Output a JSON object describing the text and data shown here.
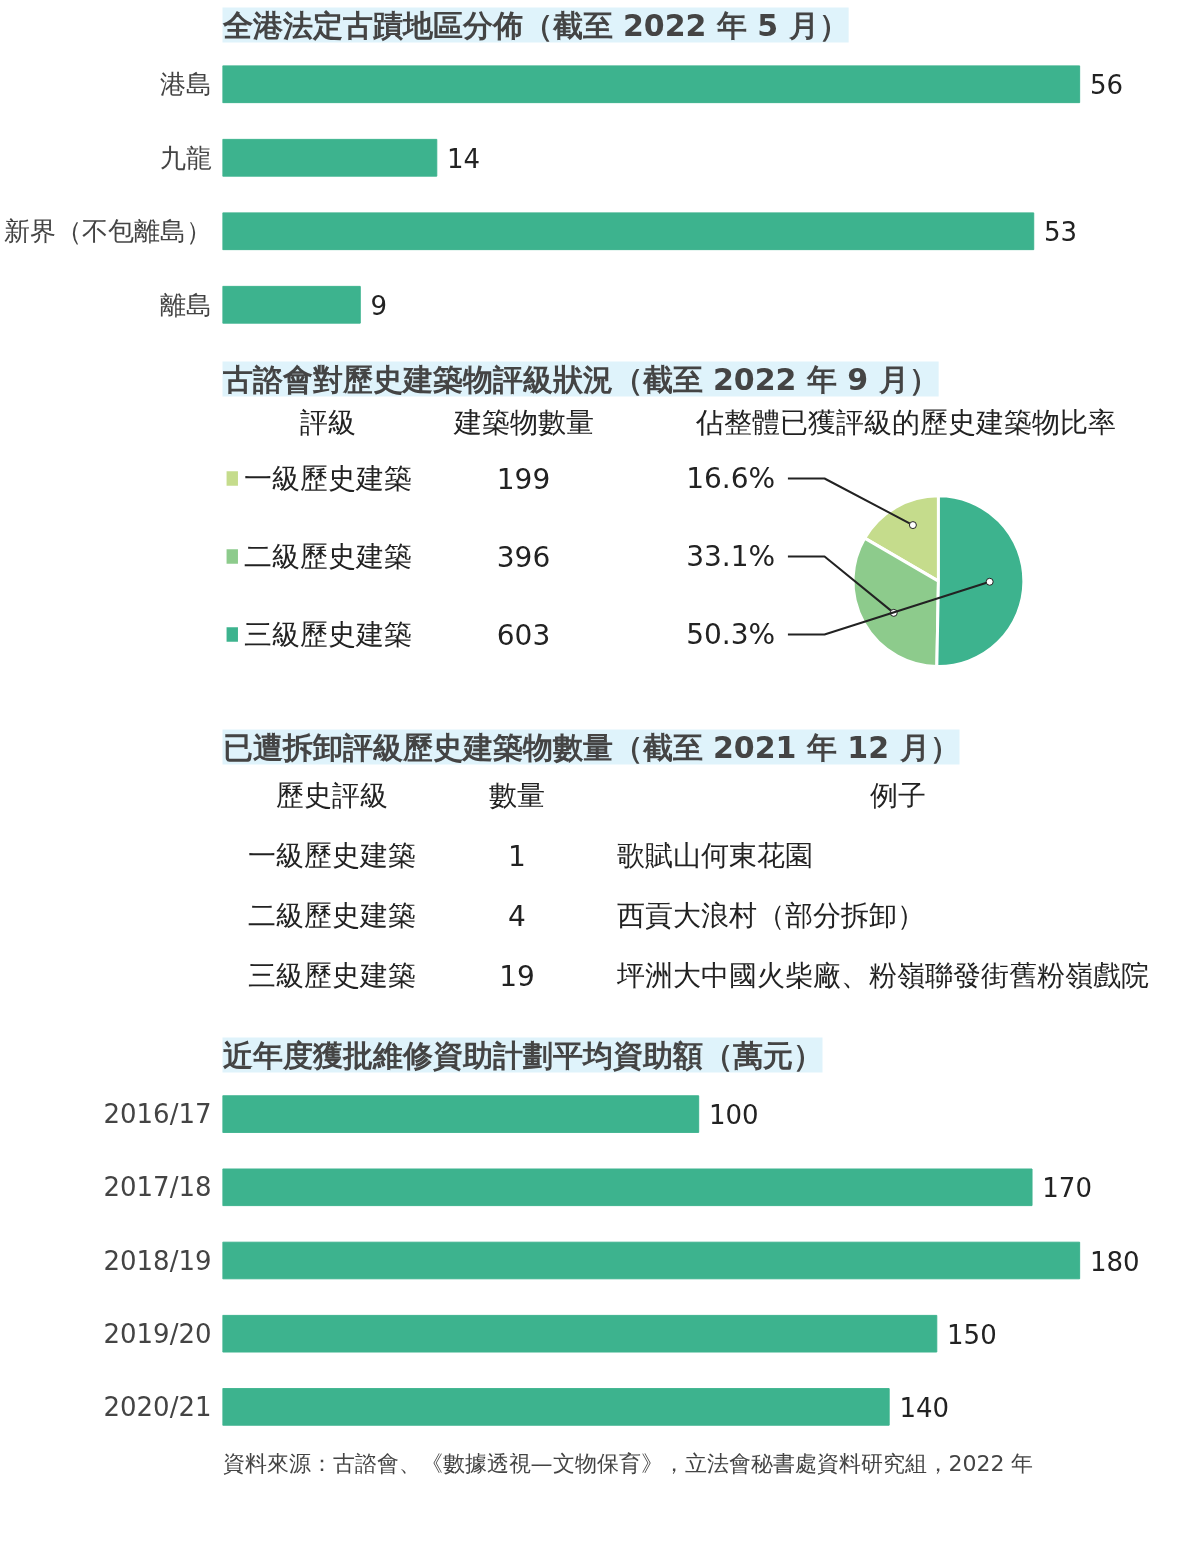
{
  "chart_data": [
    {
      "type": "bar",
      "orientation": "horizontal",
      "title": "全港法定古蹟地區分佈（截至 2022 年 5 月）",
      "categories": [
        "港島",
        "九龍",
        "新界（不包離島）",
        "離島"
      ],
      "values": [
        56,
        14,
        53,
        9
      ],
      "color": "#3db38e",
      "data_labels": true
    },
    {
      "type": "pie",
      "title": "古諮會對歷史建築物評級狀況（截至 2022 年 9 月）",
      "categories": [
        "一級歷史建築",
        "二級歷史建築",
        "三級歷史建築"
      ],
      "values": [
        16.6,
        33.1,
        50.3
      ],
      "colors": [
        "#c5dc8c",
        "#8dcb8c",
        "#3db38e"
      ],
      "value_labels": [
        "16.6%",
        "33.1%",
        "50.3%"
      ],
      "legend": "left",
      "annotations": [
        "評級",
        "建築物數量",
        "佔整體已獲評級的歷史建築物比率",
        "199",
        "396",
        "603"
      ]
    },
    {
      "type": "other",
      "title": "已遭拆卸評級歷史建築物數量（截至 2021 年 12 月）",
      "annotations": [
        "歷史評級",
        "數量",
        "例子",
        "一級歷史建築",
        "1",
        "歌賦山何東花園",
        "二級歷史建築",
        "4",
        "西貢大浪村（部分拆卸）",
        "三級歷史建築",
        "19",
        "坪洲大中國火柴廠、粉嶺聯發街舊粉嶺戲院"
      ]
    },
    {
      "type": "bar",
      "orientation": "horizontal",
      "title": "近年度獲批維修資助計劃平均資助額（萬元）",
      "categories": [
        "2016/17",
        "2017/18",
        "2018/19",
        "2019/20",
        "2020/21"
      ],
      "values": [
        100,
        170,
        180,
        150,
        140
      ],
      "color": "#3db38e",
      "data_labels": true,
      "annotations": [
        "資料來源：古諮會、《數據透視—文物保育》，立法會秘書處資料研究組，2022 年"
      ]
    }
  ]
}
